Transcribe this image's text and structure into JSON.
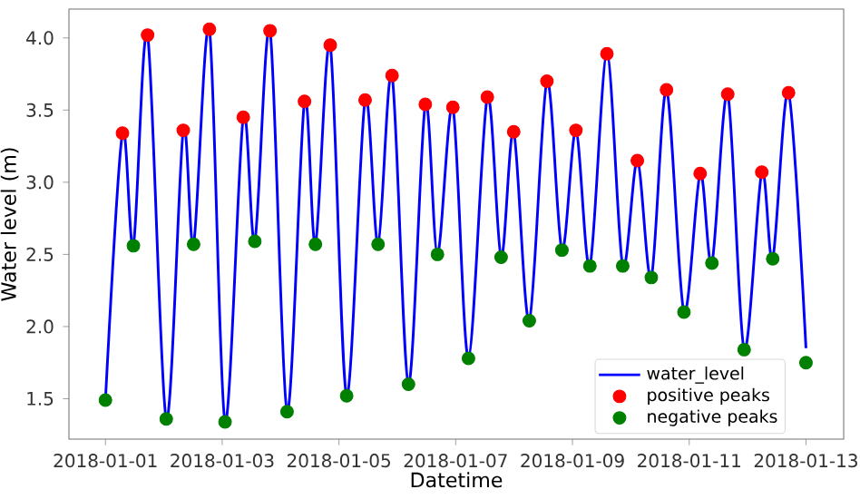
{
  "chart_data": {
    "type": "line",
    "xlabel": "Datetime",
    "ylabel": "Water level (m)",
    "xlim": [
      "2017-12-31T09:00",
      "2018-01-13T15:30"
    ],
    "ylim": [
      1.22,
      4.2
    ],
    "xticks": [
      "2018-01-01",
      "2018-01-03",
      "2018-01-05",
      "2018-01-07",
      "2018-01-09",
      "2018-01-11",
      "2018-01-13"
    ],
    "yticks": [
      {
        "value": 1.5,
        "label": "1.5"
      },
      {
        "value": 2,
        "label": "2.0"
      },
      {
        "value": 2.5,
        "label": "2.5"
      },
      {
        "value": 3,
        "label": "3.0"
      },
      {
        "value": 3.5,
        "label": "3.5"
      },
      {
        "value": 4,
        "label": "4.0"
      }
    ],
    "grid": false,
    "legend": "bottom right",
    "series": [
      {
        "name": "water_level",
        "type": "line",
        "color": "#0000ff",
        "marker": "none",
        "x": [
          "2018-01-01T00:00",
          "2018-01-01T07:00",
          "2018-01-01T11:30",
          "2018-01-01T17:20",
          "2018-01-02T01:00",
          "2018-01-02T08:00",
          "2018-01-02T12:15",
          "2018-01-02T18:45",
          "2018-01-03T01:10",
          "2018-01-03T08:40",
          "2018-01-03T13:25",
          "2018-01-03T19:40",
          "2018-01-04T02:40",
          "2018-01-04T09:50",
          "2018-01-04T14:20",
          "2018-01-04T20:25",
          "2018-01-05T03:10",
          "2018-01-05T10:45",
          "2018-01-05T16:05",
          "2018-01-05T21:50",
          "2018-01-06T04:35",
          "2018-01-06T11:30",
          "2018-01-06T16:30",
          "2018-01-06T22:50",
          "2018-01-07T05:15",
          "2018-01-07T13:00",
          "2018-01-07T18:40",
          "2018-01-07T23:50",
          "2018-01-08T06:15",
          "2018-01-08T13:30",
          "2018-01-08T19:40",
          "2018-01-09T01:25",
          "2018-01-09T07:10",
          "2018-01-09T14:10",
          "2018-01-09T20:40",
          "2018-01-10T02:40",
          "2018-01-10T08:25",
          "2018-01-10T14:40",
          "2018-01-10T21:50",
          "2018-01-11T04:30",
          "2018-01-11T09:20",
          "2018-01-11T15:50",
          "2018-01-11T22:35",
          "2018-01-12T05:50",
          "2018-01-12T10:20",
          "2018-01-12T16:50",
          "2018-01-13T00:00"
        ],
        "values": [
          1.49,
          3.34,
          2.56,
          4.02,
          1.36,
          3.36,
          2.57,
          4.06,
          1.34,
          3.45,
          2.59,
          4.05,
          1.41,
          3.56,
          2.57,
          3.95,
          1.52,
          3.57,
          2.57,
          3.74,
          1.6,
          3.54,
          2.5,
          3.52,
          1.78,
          3.59,
          2.48,
          3.35,
          2.04,
          3.7,
          2.53,
          3.36,
          2.42,
          3.89,
          2.42,
          3.15,
          2.34,
          3.64,
          2.1,
          3.06,
          2.44,
          3.61,
          1.84,
          3.07,
          2.47,
          3.62,
          1.85
        ]
      },
      {
        "name": "positive peaks",
        "type": "scatter",
        "color": "#ff0000",
        "marker": "circle",
        "x": [
          "2018-01-01T07:00",
          "2018-01-01T17:20",
          "2018-01-02T08:00",
          "2018-01-02T18:45",
          "2018-01-03T08:40",
          "2018-01-03T19:40",
          "2018-01-04T09:50",
          "2018-01-04T20:25",
          "2018-01-05T10:45",
          "2018-01-05T21:50",
          "2018-01-06T11:30",
          "2018-01-06T22:50",
          "2018-01-07T13:00",
          "2018-01-07T23:50",
          "2018-01-08T13:30",
          "2018-01-09T01:25",
          "2018-01-09T14:10",
          "2018-01-10T02:40",
          "2018-01-10T14:40",
          "2018-01-11T04:30",
          "2018-01-11T15:50",
          "2018-01-12T05:50",
          "2018-01-12T16:50"
        ],
        "values": [
          3.34,
          4.02,
          3.36,
          4.06,
          3.45,
          4.05,
          3.56,
          3.95,
          3.57,
          3.74,
          3.54,
          3.52,
          3.59,
          3.35,
          3.7,
          3.36,
          3.89,
          3.15,
          3.64,
          3.06,
          3.61,
          3.07,
          3.62
        ]
      },
      {
        "name": "negative peaks",
        "type": "scatter",
        "color": "#008000",
        "marker": "circle",
        "x": [
          "2018-01-01T00:00",
          "2018-01-01T11:30",
          "2018-01-02T01:00",
          "2018-01-02T12:15",
          "2018-01-03T01:10",
          "2018-01-03T13:25",
          "2018-01-04T02:40",
          "2018-01-04T14:20",
          "2018-01-05T03:10",
          "2018-01-05T16:05",
          "2018-01-06T04:35",
          "2018-01-06T16:30",
          "2018-01-07T05:15",
          "2018-01-07T18:40",
          "2018-01-08T06:15",
          "2018-01-08T19:40",
          "2018-01-09T07:10",
          "2018-01-09T20:40",
          "2018-01-10T08:25",
          "2018-01-10T21:50",
          "2018-01-11T09:20",
          "2018-01-11T22:35",
          "2018-01-12T10:20",
          "2018-01-13T00:00"
        ],
        "values": [
          1.49,
          2.56,
          1.36,
          2.57,
          1.34,
          2.59,
          1.41,
          2.57,
          1.52,
          2.57,
          1.6,
          2.5,
          1.78,
          2.48,
          2.04,
          2.53,
          2.42,
          2.42,
          2.34,
          2.1,
          2.44,
          1.84,
          2.47,
          1.75
        ]
      }
    ]
  }
}
